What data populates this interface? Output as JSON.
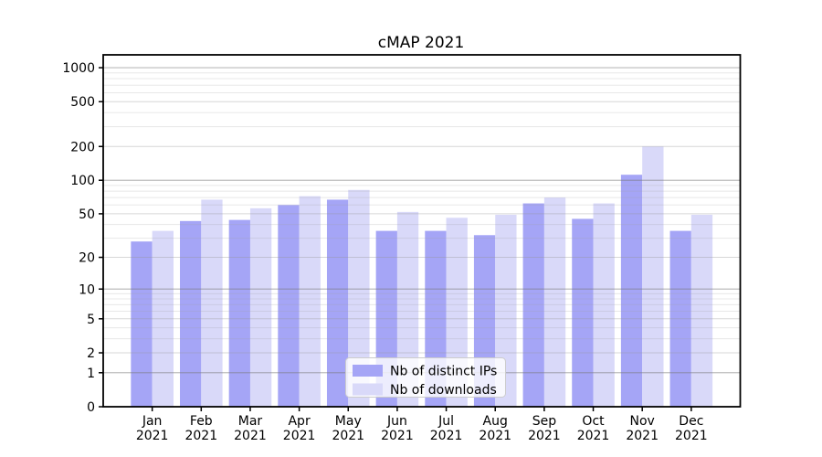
{
  "figure": {
    "background": "#ffffff"
  },
  "chart_data": {
    "type": "bar",
    "title": "cMAP 2021",
    "categories": [
      "Jan 2021",
      "Feb 2021",
      "Mar 2021",
      "Apr 2021",
      "May 2021",
      "Jun 2021",
      "Jul 2021",
      "Aug 2021",
      "Sep 2021",
      "Oct 2021",
      "Nov 2021",
      "Dec 2021"
    ],
    "series": [
      {
        "name": "Nb of distinct IPs",
        "color": "#a5a5f6",
        "values": [
          28,
          43,
          44,
          60,
          67,
          35,
          35,
          32,
          62,
          45,
          112,
          35
        ]
      },
      {
        "name": "Nb of downloads",
        "color": "#d9d9f9",
        "values": [
          35,
          67,
          56,
          72,
          82,
          52,
          46,
          49,
          70,
          62,
          200,
          49
        ]
      }
    ],
    "xlabel": "",
    "ylabel": "",
    "yscale": "log1p",
    "yticks": [
      0,
      1,
      2,
      5,
      10,
      20,
      50,
      100,
      200,
      500,
      1000
    ],
    "ylim": [
      0,
      1300
    ],
    "grid": "both",
    "legend_position": "lower center",
    "colors": {
      "axis": "#000000",
      "grid_major": "rgba(120,120,120,0.50)",
      "grid_labeled": "rgba(150,150,150,0.38)",
      "grid_minor": "rgba(165,165,165,0.25)",
      "legend_border": "#cccccc",
      "legend_fill": "rgba(255,255,255,0.8)"
    }
  }
}
